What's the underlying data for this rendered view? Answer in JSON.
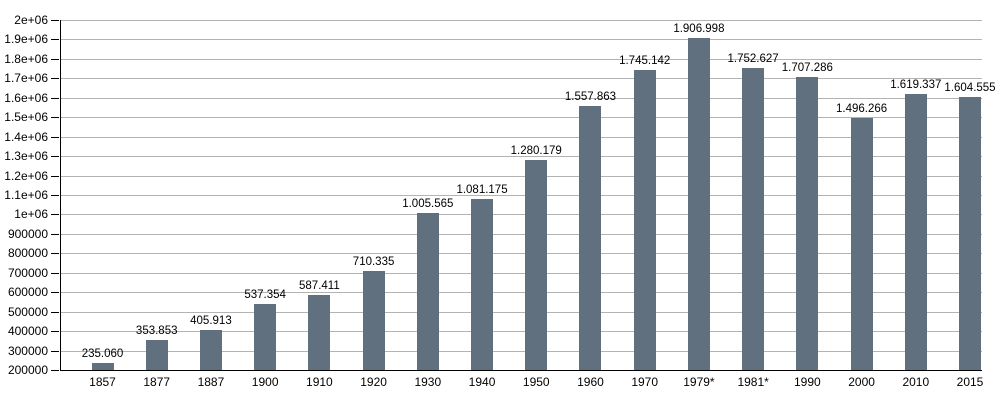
{
  "chart_data": {
    "type": "bar",
    "title": "",
    "xlabel": "",
    "ylabel": "",
    "categories": [
      "1857",
      "1877",
      "1887",
      "1900",
      "1910",
      "1920",
      "1930",
      "1940",
      "1950",
      "1960",
      "1970",
      "1979*",
      "1981*",
      "1990",
      "2000",
      "2010",
      "2015"
    ],
    "values": [
      235060,
      353853,
      405913,
      537354,
      587411,
      710335,
      1005565,
      1081175,
      1280179,
      1557863,
      1745142,
      1906998,
      1752627,
      1707286,
      1496266,
      1619337,
      1604555
    ],
    "value_labels": [
      "235.060",
      "353.853",
      "405.913",
      "537.354",
      "587.411",
      "710.335",
      "1.005.565",
      "1.081.175",
      "1.280.179",
      "1.557.863",
      "1.745.142",
      "1.906.998",
      "1.752.627",
      "1.707.286",
      "1.496.266",
      "1.619.337",
      "1.604.555"
    ],
    "ylim": [
      200000,
      2000000
    ],
    "y_tick_values": [
      200000,
      300000,
      400000,
      500000,
      600000,
      700000,
      800000,
      900000,
      1000000,
      1100000,
      1200000,
      1300000,
      1400000,
      1500000,
      1600000,
      1700000,
      1800000,
      1900000,
      2000000
    ],
    "y_tick_labels": [
      "200000",
      "300000",
      "400000",
      "500000",
      "600000",
      "700000",
      "800000",
      "900000",
      "1e+06",
      "1.1e+06",
      "1.2e+06",
      "1.3e+06",
      "1.4e+06",
      "1.5e+06",
      "1.6e+06",
      "1.7e+06",
      "1.8e+06",
      "1.9e+06",
      "2e+06"
    ],
    "grid": "horizontal",
    "legend": "none",
    "bar_color": "#61707f",
    "grid_color": "#b3b3b3",
    "axis_color": "#000000",
    "text_color": "#000000",
    "background": "#ffffff"
  }
}
